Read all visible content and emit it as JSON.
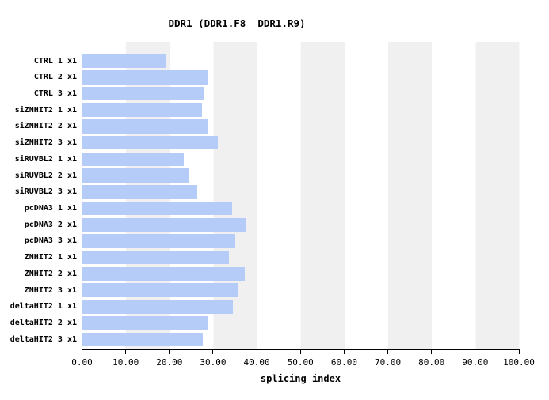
{
  "title": "DDR1 (DDR1.F8  DDR1.R9)",
  "chart_data": {
    "type": "bar",
    "orientation": "horizontal",
    "title": "DDR1 (DDR1.F8  DDR1.R9)",
    "xlabel": "splicing index",
    "xlim": [
      0,
      100
    ],
    "xticks": [
      "0.00",
      "10.00",
      "20.00",
      "30.00",
      "40.00",
      "50.00",
      "60.00",
      "70.00",
      "80.00",
      "90.00",
      "100.00"
    ],
    "categories": [
      "CTRL 1 x1",
      "CTRL 2 x1",
      "CTRL 3 x1",
      "siZNHIT2 1 x1",
      "siZNHIT2 2 x1",
      "siZNHIT2 3 x1",
      "siRUVBL2 1 x1",
      "siRUVBL2 2 x1",
      "siRUVBL2 3 x1",
      "pcDNA3 1 x1",
      "pcDNA3 2 x1",
      "pcDNA3 3 x1",
      "ZNHIT2 1 x1",
      "ZNHIT2 2 x1",
      "ZNHIT2 3 x1",
      "deltaHIT2 1 x1",
      "deltaHIT2 2 x1",
      "deltaHIT2 3 x1"
    ],
    "values": [
      19.1,
      28.8,
      27.9,
      27.3,
      28.7,
      31.0,
      23.2,
      24.5,
      26.3,
      34.2,
      37.3,
      35.0,
      33.6,
      37.1,
      35.8,
      34.4,
      28.9,
      27.5
    ],
    "bar_color": "#b4ccf7",
    "stripe_color": "#f0f0f0",
    "grid": "striped-background",
    "legend": "none"
  }
}
